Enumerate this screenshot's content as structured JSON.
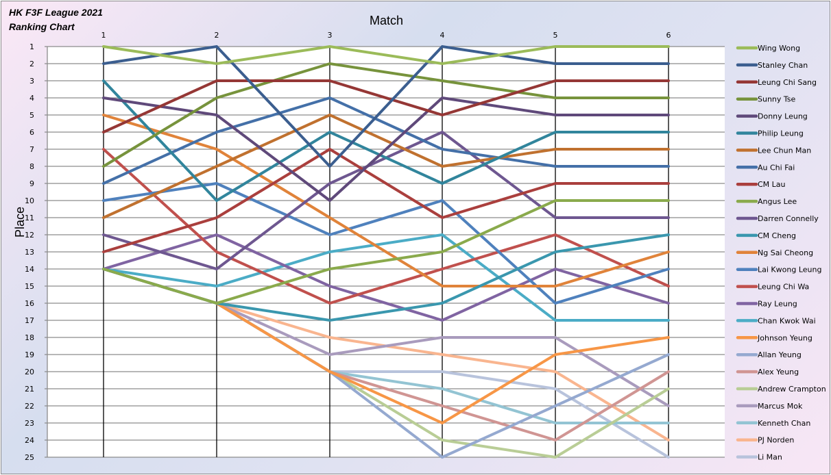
{
  "chart_title": "HK F3F League 2021\nRanking Chart",
  "chart_data": {
    "type": "line",
    "title": "HK F3F League 2021 Ranking Chart",
    "xlabel": "Match",
    "ylabel": "Place",
    "x": [
      1,
      2,
      3,
      4,
      5,
      6
    ],
    "y_ticks": [
      1,
      2,
      3,
      4,
      5,
      6,
      7,
      8,
      9,
      10,
      11,
      12,
      13,
      14,
      15,
      16,
      17,
      18,
      19,
      20,
      21,
      22,
      23,
      24,
      25
    ],
    "ylim": [
      1,
      25
    ],
    "y_reversed": true,
    "grid": true,
    "legend_position": "right",
    "series": [
      {
        "name": "Wing Wong",
        "color": "#9BBB59",
        "values": [
          1,
          2,
          1,
          2,
          1,
          1
        ]
      },
      {
        "name": "Stanley Chan",
        "color": "#3B5E8F",
        "values": [
          2,
          1,
          8,
          1,
          2,
          2
        ]
      },
      {
        "name": "Leung Chi Sang",
        "color": "#953735",
        "values": [
          6,
          3,
          3,
          5,
          3,
          3
        ]
      },
      {
        "name": "Sunny Tse",
        "color": "#77933C",
        "values": [
          8,
          4,
          2,
          3,
          4,
          4
        ]
      },
      {
        "name": "Donny Leung",
        "color": "#5F497A",
        "values": [
          4,
          5,
          10,
          4,
          5,
          5
        ]
      },
      {
        "name": "Philip Leung",
        "color": "#31859C",
        "values": [
          3,
          10,
          6,
          9,
          6,
          6
        ]
      },
      {
        "name": "Lee Chun Man",
        "color": "#C0712F",
        "values": [
          11,
          8,
          5,
          8,
          7,
          7
        ]
      },
      {
        "name": "Au Chi Fai",
        "color": "#4470A8",
        "values": [
          9,
          6,
          4,
          7,
          8,
          8
        ]
      },
      {
        "name": "CM Lau",
        "color": "#AA3F3D",
        "values": [
          13,
          11,
          7,
          11,
          9,
          9
        ]
      },
      {
        "name": "Angus Lee",
        "color": "#8AAA4C",
        "values": [
          14,
          16,
          14,
          13,
          10,
          10
        ]
      },
      {
        "name": "Darren Connelly",
        "color": "#6E5790",
        "values": [
          12,
          14,
          9,
          6,
          11,
          11
        ]
      },
      {
        "name": "CM Cheng",
        "color": "#3A97AE",
        "values": [
          14,
          16,
          17,
          16,
          13,
          12
        ]
      },
      {
        "name": "Ng Sai Cheong",
        "color": "#E0833A",
        "values": [
          5,
          7,
          11,
          15,
          15,
          13
        ]
      },
      {
        "name": "Lai Kwong Leung",
        "color": "#4F81BD",
        "values": [
          10,
          9,
          12,
          10,
          16,
          14
        ]
      },
      {
        "name": "Leung Chi Wa",
        "color": "#C0504D",
        "values": [
          7,
          13,
          16,
          14,
          12,
          15
        ]
      },
      {
        "name": "Ray Leung",
        "color": "#8064A2",
        "values": [
          14,
          12,
          15,
          17,
          14,
          16
        ]
      },
      {
        "name": "Chan Kwok Wai",
        "color": "#4BACC6",
        "values": [
          14,
          15,
          13,
          12,
          17,
          17
        ]
      },
      {
        "name": "Johnson Yeung",
        "color": "#F79646",
        "values": [
          14,
          16,
          20,
          23,
          19,
          18
        ]
      },
      {
        "name": "Allan Yeung",
        "color": "#95A9D0",
        "values": [
          14,
          16,
          20,
          25,
          22,
          19
        ]
      },
      {
        "name": "Alex Yeung",
        "color": "#D09593",
        "values": [
          14,
          16,
          20,
          22,
          24,
          20
        ]
      },
      {
        "name": "Andrew Crampton",
        "color": "#B9CD96",
        "values": [
          14,
          16,
          20,
          24,
          25,
          21
        ]
      },
      {
        "name": "Marcus Mok",
        "color": "#A99BBD",
        "values": [
          14,
          16,
          19,
          18,
          18,
          22
        ]
      },
      {
        "name": "Kenneth Chan",
        "color": "#93C4D3",
        "values": [
          14,
          16,
          20,
          21,
          23,
          23
        ]
      },
      {
        "name": "PJ Norden",
        "color": "#F9B58F",
        "values": [
          14,
          16,
          18,
          19,
          20,
          24
        ]
      },
      {
        "name": "Li Man",
        "color": "#B8C3DC",
        "values": [
          14,
          16,
          20,
          20,
          21,
          25
        ]
      }
    ]
  }
}
